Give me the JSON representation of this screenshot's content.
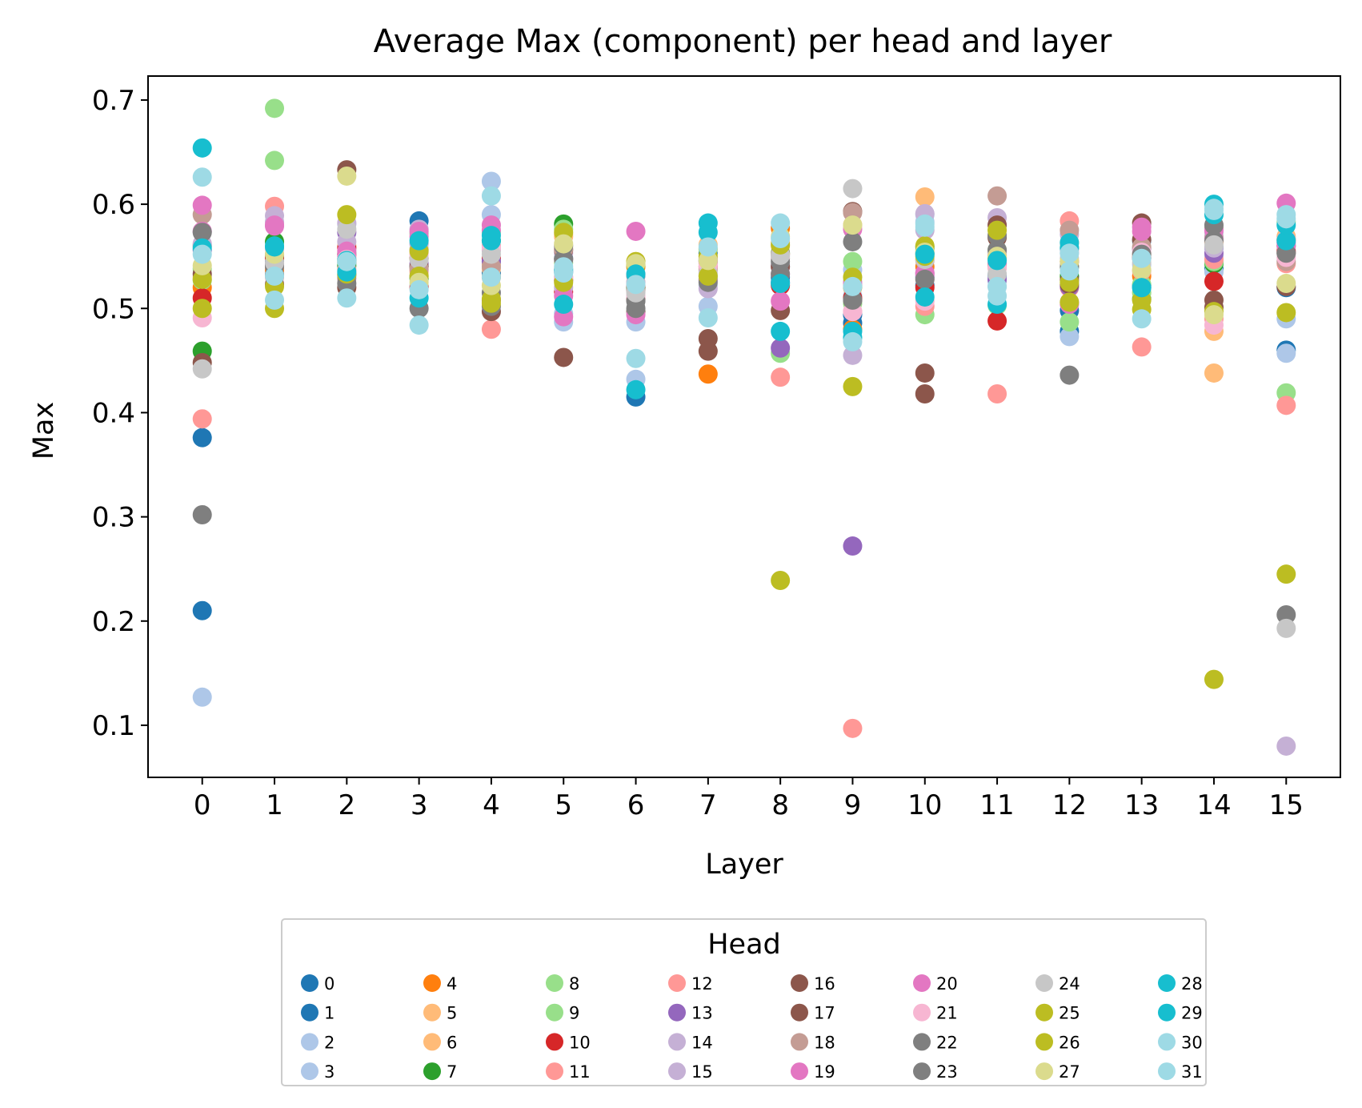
{
  "chart_data": {
    "type": "scatter",
    "title": "Average Max (component) per head and layer",
    "xlabel": "Layer",
    "ylabel": "Max",
    "xlim": [
      -0.75,
      15.75
    ],
    "ylim": [
      0.05,
      0.723
    ],
    "x_ticks": [
      0,
      1,
      2,
      3,
      4,
      5,
      6,
      7,
      8,
      9,
      10,
      11,
      12,
      13,
      14,
      15
    ],
    "y_ticks": [
      0.1,
      0.2,
      0.3,
      0.4,
      0.5,
      0.6,
      0.7
    ],
    "y_tick_labels": [
      "0.1",
      "0.2",
      "0.3",
      "0.4",
      "0.5",
      "0.6",
      "0.7"
    ],
    "grid": false,
    "legend": {
      "title": "Head",
      "placement": "below",
      "columns": 8
    },
    "series": [
      {
        "name": "0",
        "color": "#1f77b4",
        "values": [
          0.376,
          0.538,
          0.552,
          0.584,
          0.545,
          0.548,
          0.415,
          0.553,
          0.53,
          0.486,
          0.53,
          0.54,
          0.478,
          0.565,
          0.538,
          0.52
        ]
      },
      {
        "name": "1",
        "color": "#1f77b4",
        "values": [
          0.21,
          0.545,
          0.544,
          0.54,
          0.534,
          0.535,
          0.518,
          0.528,
          0.525,
          0.494,
          0.522,
          0.532,
          0.498,
          0.522,
          0.558,
          0.46
        ]
      },
      {
        "name": "2",
        "color": "#aec7e8",
        "values": [
          0.127,
          0.533,
          0.548,
          0.522,
          0.622,
          0.487,
          0.432,
          0.502,
          0.54,
          0.537,
          0.583,
          0.526,
          0.473,
          0.542,
          0.535,
          0.457
        ]
      },
      {
        "name": "3",
        "color": "#aec7e8",
        "values": [
          0.561,
          0.552,
          0.581,
          0.562,
          0.59,
          0.495,
          0.487,
          0.522,
          0.55,
          0.512,
          0.59,
          0.521,
          0.557,
          0.548,
          0.55,
          0.49
        ]
      },
      {
        "name": "4",
        "color": "#ff7f0e",
        "values": [
          0.52,
          0.537,
          0.552,
          0.548,
          0.53,
          0.527,
          0.54,
          0.437,
          0.577,
          0.48,
          0.54,
          0.542,
          0.53,
          0.531,
          0.564,
          0.566
        ]
      },
      {
        "name": "5",
        "color": "#ffbb78",
        "values": [
          0.56,
          0.548,
          0.56,
          0.535,
          0.538,
          0.571,
          0.545,
          0.561,
          0.563,
          0.52,
          0.607,
          0.539,
          0.563,
          0.515,
          0.478,
          0.566
        ]
      },
      {
        "name": "6",
        "color": "#ffbb78",
        "values": [
          0.53,
          0.541,
          0.545,
          0.553,
          0.542,
          0.569,
          0.543,
          0.557,
          0.56,
          0.58,
          0.556,
          0.551,
          0.558,
          0.552,
          0.438,
          0.569
        ]
      },
      {
        "name": "7",
        "color": "#2ca02c",
        "values": [
          0.459,
          0.564,
          0.541,
          0.529,
          0.565,
          0.581,
          0.52,
          0.546,
          0.553,
          0.521,
          0.559,
          0.549,
          0.531,
          0.509,
          0.543,
          0.56
        ]
      },
      {
        "name": "8",
        "color": "#98df8a",
        "values": [
          0.538,
          0.692,
          0.553,
          0.572,
          0.573,
          0.576,
          0.525,
          0.557,
          0.457,
          0.505,
          0.494,
          0.503,
          0.487,
          0.515,
          0.545,
          0.419
        ]
      },
      {
        "name": "9",
        "color": "#98df8a",
        "values": [
          0.527,
          0.642,
          0.547,
          0.557,
          0.556,
          0.544,
          0.531,
          0.547,
          0.548,
          0.545,
          0.552,
          0.556,
          0.54,
          0.523,
          0.569,
          0.583
        ]
      },
      {
        "name": "10",
        "color": "#d62728",
        "values": [
          0.51,
          0.549,
          0.558,
          0.52,
          0.548,
          0.516,
          0.522,
          0.54,
          0.522,
          0.51,
          0.52,
          0.488,
          0.545,
          0.549,
          0.526,
          0.555
        ]
      },
      {
        "name": "11",
        "color": "#ff9896",
        "values": [
          0.394,
          0.53,
          0.537,
          0.556,
          0.48,
          0.53,
          0.509,
          0.527,
          0.434,
          0.097,
          0.502,
          0.418,
          0.52,
          0.463,
          0.49,
          0.407
        ]
      },
      {
        "name": "12",
        "color": "#ff9896",
        "values": [
          0.56,
          0.598,
          0.55,
          0.537,
          0.56,
          0.547,
          0.524,
          0.545,
          0.552,
          0.497,
          0.528,
          0.551,
          0.584,
          0.536,
          0.547,
          0.543
        ]
      },
      {
        "name": "13",
        "color": "#9467bd",
        "values": [
          0.556,
          0.543,
          0.573,
          0.543,
          0.545,
          0.527,
          0.532,
          0.545,
          0.462,
          0.272,
          0.534,
          0.528,
          0.521,
          0.557,
          0.553,
          0.563
        ]
      },
      {
        "name": "14",
        "color": "#c5b0d5",
        "values": [
          0.562,
          0.589,
          0.564,
          0.576,
          0.556,
          0.52,
          0.525,
          0.519,
          0.54,
          0.455,
          0.591,
          0.587,
          0.553,
          0.566,
          0.558,
          0.08
        ]
      },
      {
        "name": "15",
        "color": "#c5b0d5",
        "values": [
          0.574,
          0.583,
          0.582,
          0.562,
          0.558,
          0.553,
          0.533,
          0.535,
          0.542,
          0.526,
          0.575,
          0.554,
          0.571,
          0.558,
          0.573,
          0.566
        ]
      },
      {
        "name": "16",
        "color": "#8c564b",
        "values": [
          0.448,
          0.551,
          0.633,
          0.54,
          0.497,
          0.453,
          0.508,
          0.471,
          0.498,
          0.593,
          0.438,
          0.58,
          0.527,
          0.582,
          0.508,
          0.553
        ]
      },
      {
        "name": "17",
        "color": "#8c564b",
        "values": [
          0.533,
          0.523,
          0.52,
          0.548,
          0.508,
          0.556,
          0.497,
          0.459,
          0.54,
          0.508,
          0.418,
          0.568,
          0.523,
          0.566,
          0.501,
          0.521
        ]
      },
      {
        "name": "18",
        "color": "#c49c94",
        "values": [
          0.59,
          0.54,
          0.529,
          0.538,
          0.54,
          0.557,
          0.517,
          0.538,
          0.552,
          0.592,
          0.546,
          0.608,
          0.575,
          0.559,
          0.577,
          0.545
        ]
      },
      {
        "name": "19",
        "color": "#e377c2",
        "values": [
          0.599,
          0.58,
          0.555,
          0.574,
          0.58,
          0.492,
          0.574,
          0.543,
          0.507,
          0.576,
          0.534,
          0.543,
          0.506,
          0.578,
          0.575,
          0.601
        ]
      },
      {
        "name": "20",
        "color": "#e377c2",
        "values": [
          0.574,
          0.579,
          0.552,
          0.569,
          0.575,
          0.512,
          0.494,
          0.548,
          0.533,
          0.524,
          0.532,
          0.549,
          0.504,
          0.574,
          0.567,
          0.56
        ]
      },
      {
        "name": "21",
        "color": "#f7b6d2",
        "values": [
          0.491,
          0.557,
          0.547,
          0.551,
          0.558,
          0.53,
          0.512,
          0.541,
          0.548,
          0.497,
          0.507,
          0.539,
          0.555,
          0.554,
          0.484,
          0.549
        ]
      },
      {
        "name": "22",
        "color": "#7f7f7f",
        "values": [
          0.302,
          0.532,
          0.532,
          0.5,
          0.502,
          0.56,
          0.5,
          0.525,
          0.533,
          0.564,
          0.528,
          0.556,
          0.436,
          0.548,
          0.565,
          0.206
        ]
      },
      {
        "name": "23",
        "color": "#7f7f7f",
        "values": [
          0.573,
          0.541,
          0.524,
          0.531,
          0.515,
          0.547,
          0.507,
          0.531,
          0.545,
          0.508,
          0.553,
          0.57,
          0.54,
          0.552,
          0.58,
          0.553
        ]
      },
      {
        "name": "24",
        "color": "#c7c7c7",
        "values": [
          0.442,
          0.544,
          0.576,
          0.547,
          0.552,
          0.538,
          0.515,
          0.533,
          0.551,
          0.615,
          0.547,
          0.533,
          0.548,
          0.544,
          0.561,
          0.193
        ]
      },
      {
        "name": "25",
        "color": "#bcbd22",
        "values": [
          0.5,
          0.5,
          0.59,
          0.531,
          0.505,
          0.525,
          0.545,
          0.531,
          0.239,
          0.425,
          0.56,
          0.575,
          0.506,
          0.499,
          0.144,
          0.496
        ]
      },
      {
        "name": "26",
        "color": "#bcbd22",
        "values": [
          0.528,
          0.521,
          0.533,
          0.555,
          0.509,
          0.573,
          0.542,
          0.55,
          0.561,
          0.53,
          0.55,
          0.549,
          0.525,
          0.508,
          0.497,
          0.245
        ]
      },
      {
        "name": "27",
        "color": "#dbdb8d",
        "values": [
          0.541,
          0.552,
          0.627,
          0.525,
          0.522,
          0.562,
          0.543,
          0.546,
          0.569,
          0.58,
          0.554,
          0.55,
          0.545,
          0.537,
          0.494,
          0.524
        ]
      },
      {
        "name": "28",
        "color": "#17becf",
        "values": [
          0.654,
          0.56,
          0.535,
          0.51,
          0.565,
          0.504,
          0.533,
          0.582,
          0.478,
          0.478,
          0.552,
          0.504,
          0.563,
          0.52,
          0.59,
          0.565
        ]
      },
      {
        "name": "29",
        "color": "#17becf",
        "values": [
          0.558,
          0.559,
          0.546,
          0.565,
          0.57,
          0.537,
          0.422,
          0.573,
          0.524,
          0.472,
          0.511,
          0.546,
          0.558,
          0.52,
          0.6,
          0.58
        ]
      },
      {
        "name": "30",
        "color": "#9edae5",
        "values": [
          0.626,
          0.508,
          0.51,
          0.484,
          0.608,
          0.54,
          0.452,
          0.491,
          0.582,
          0.468,
          0.578,
          0.512,
          0.536,
          0.49,
          0.594,
          0.59
        ]
      },
      {
        "name": "31",
        "color": "#9edae5",
        "values": [
          0.552,
          0.531,
          0.545,
          0.518,
          0.53,
          0.534,
          0.523,
          0.559,
          0.567,
          0.521,
          0.581,
          0.521,
          0.553,
          0.548,
          0.596,
          0.586
        ]
      }
    ]
  }
}
